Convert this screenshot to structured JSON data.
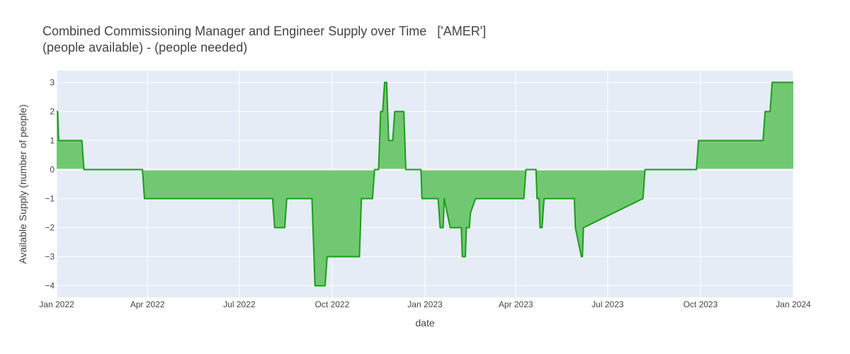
{
  "chart_data": {
    "type": "area",
    "title": "Combined Commissioning Manager and Engineer Supply over Time   ['AMER']",
    "subtitle": "(people available) - (people needed)",
    "xlabel": "date",
    "ylabel": "Available Supply (number of people)",
    "xlim": [
      "2022-01-01",
      "2024-01-01"
    ],
    "ylim": [
      -4.4,
      3.4
    ],
    "x_ticks": [
      {
        "date": "2022-01-01",
        "label": "Jan 2022"
      },
      {
        "date": "2022-04-01",
        "label": "Apr 2022"
      },
      {
        "date": "2022-07-01",
        "label": "Jul 2022"
      },
      {
        "date": "2022-10-01",
        "label": "Oct 2022"
      },
      {
        "date": "2023-01-01",
        "label": "Jan 2023"
      },
      {
        "date": "2023-04-01",
        "label": "Apr 2023"
      },
      {
        "date": "2023-07-01",
        "label": "Jul 2023"
      },
      {
        "date": "2023-10-01",
        "label": "Oct 2023"
      },
      {
        "date": "2024-01-01",
        "label": "Jan 2024"
      }
    ],
    "y_ticks": [
      3,
      2,
      1,
      0,
      -1,
      -2,
      -3,
      -4
    ],
    "y_tick_labels": [
      "3",
      "2",
      "1",
      "0",
      "−1",
      "−2",
      "−3",
      "−4"
    ],
    "grid": true,
    "colors": {
      "line": "#1a9e1a",
      "fill": "#72c872",
      "plot_bg": "#e5ecf6",
      "grid": "#ffffff"
    },
    "series": [
      {
        "x": [
          "2022-01-01",
          "2022-01-02",
          "2022-01-03",
          "2022-01-04",
          "2022-01-26",
          "2022-01-27",
          "2022-01-28",
          "2022-03-27",
          "2022-03-28",
          "2022-03-29",
          "2022-08-03",
          "2022-08-04",
          "2022-08-05",
          "2022-08-15",
          "2022-08-16",
          "2022-08-17",
          "2022-09-11",
          "2022-09-12",
          "2022-09-13",
          "2022-09-14",
          "2022-09-24",
          "2022-09-25",
          "2022-09-26",
          "2022-10-28",
          "2022-10-29",
          "2022-10-30",
          "2022-11-10",
          "2022-11-11",
          "2022-11-12",
          "2022-11-16",
          "2022-11-17",
          "2022-11-18",
          "2022-11-20",
          "2022-11-21",
          "2022-11-22",
          "2022-11-24",
          "2022-11-25",
          "2022-11-26",
          "2022-11-30",
          "2022-12-01",
          "2022-12-02",
          "2022-12-11",
          "2022-12-12",
          "2022-12-13",
          "2022-12-28",
          "2022-12-29",
          "2022-12-30",
          "2023-01-14",
          "2023-01-15",
          "2023-01-16",
          "2023-01-18",
          "2023-01-19",
          "2023-01-20",
          "2023-01-26",
          "2023-01-27",
          "2023-01-28",
          "2023-01-29",
          "2023-02-06",
          "2023-02-07",
          "2023-02-08",
          "2023-02-10",
          "2023-02-11",
          "2023-02-13",
          "2023-02-14",
          "2023-02-15",
          "2023-02-20",
          "2023-02-21",
          "2023-02-22",
          "2023-04-09",
          "2023-04-10",
          "2023-04-11",
          "2023-04-20",
          "2023-04-21",
          "2023-04-22",
          "2023-04-23",
          "2023-04-24",
          "2023-04-25",
          "2023-04-27",
          "2023-04-28",
          "2023-04-29",
          "2023-05-28",
          "2023-05-29",
          "2023-05-30",
          "2023-06-05",
          "2023-06-06",
          "2023-06-07",
          "2023-08-05",
          "2023-08-06",
          "2023-08-07",
          "2023-09-27",
          "2023-09-28",
          "2023-09-29",
          "2023-12-02",
          "2023-12-03",
          "2023-12-04",
          "2023-12-09",
          "2023-12-10",
          "2023-12-11",
          "2024-01-01"
        ],
        "y": [
          2,
          2,
          1,
          1,
          1,
          0.5,
          0,
          0,
          -0.5,
          -1,
          -1,
          -1.5,
          -2,
          -2,
          -1.5,
          -1,
          -1,
          -2,
          -3,
          -4,
          -4,
          -3.5,
          -3,
          -3,
          -2,
          -1,
          -1,
          -0.5,
          0,
          0,
          1,
          2,
          2,
          2.5,
          3,
          3,
          2,
          1,
          1,
          1.5,
          2,
          2,
          1,
          0,
          0,
          -1,
          -1,
          -1,
          -1.5,
          -2,
          -2,
          -2,
          -1,
          -2,
          -2,
          -2,
          -2,
          -2,
          -3,
          -3,
          -3,
          -2,
          -2,
          -2,
          -1.5,
          -1,
          -1,
          -1,
          -1,
          -0.5,
          0,
          0,
          0,
          -1,
          -1,
          -1,
          -2,
          -2,
          -1.5,
          -1,
          -1,
          -1,
          -2,
          -3,
          -3,
          -2,
          -1,
          -0.5,
          0,
          0,
          0.5,
          1,
          1,
          1.5,
          2,
          2,
          2.5,
          3,
          3
        ]
      }
    ]
  }
}
